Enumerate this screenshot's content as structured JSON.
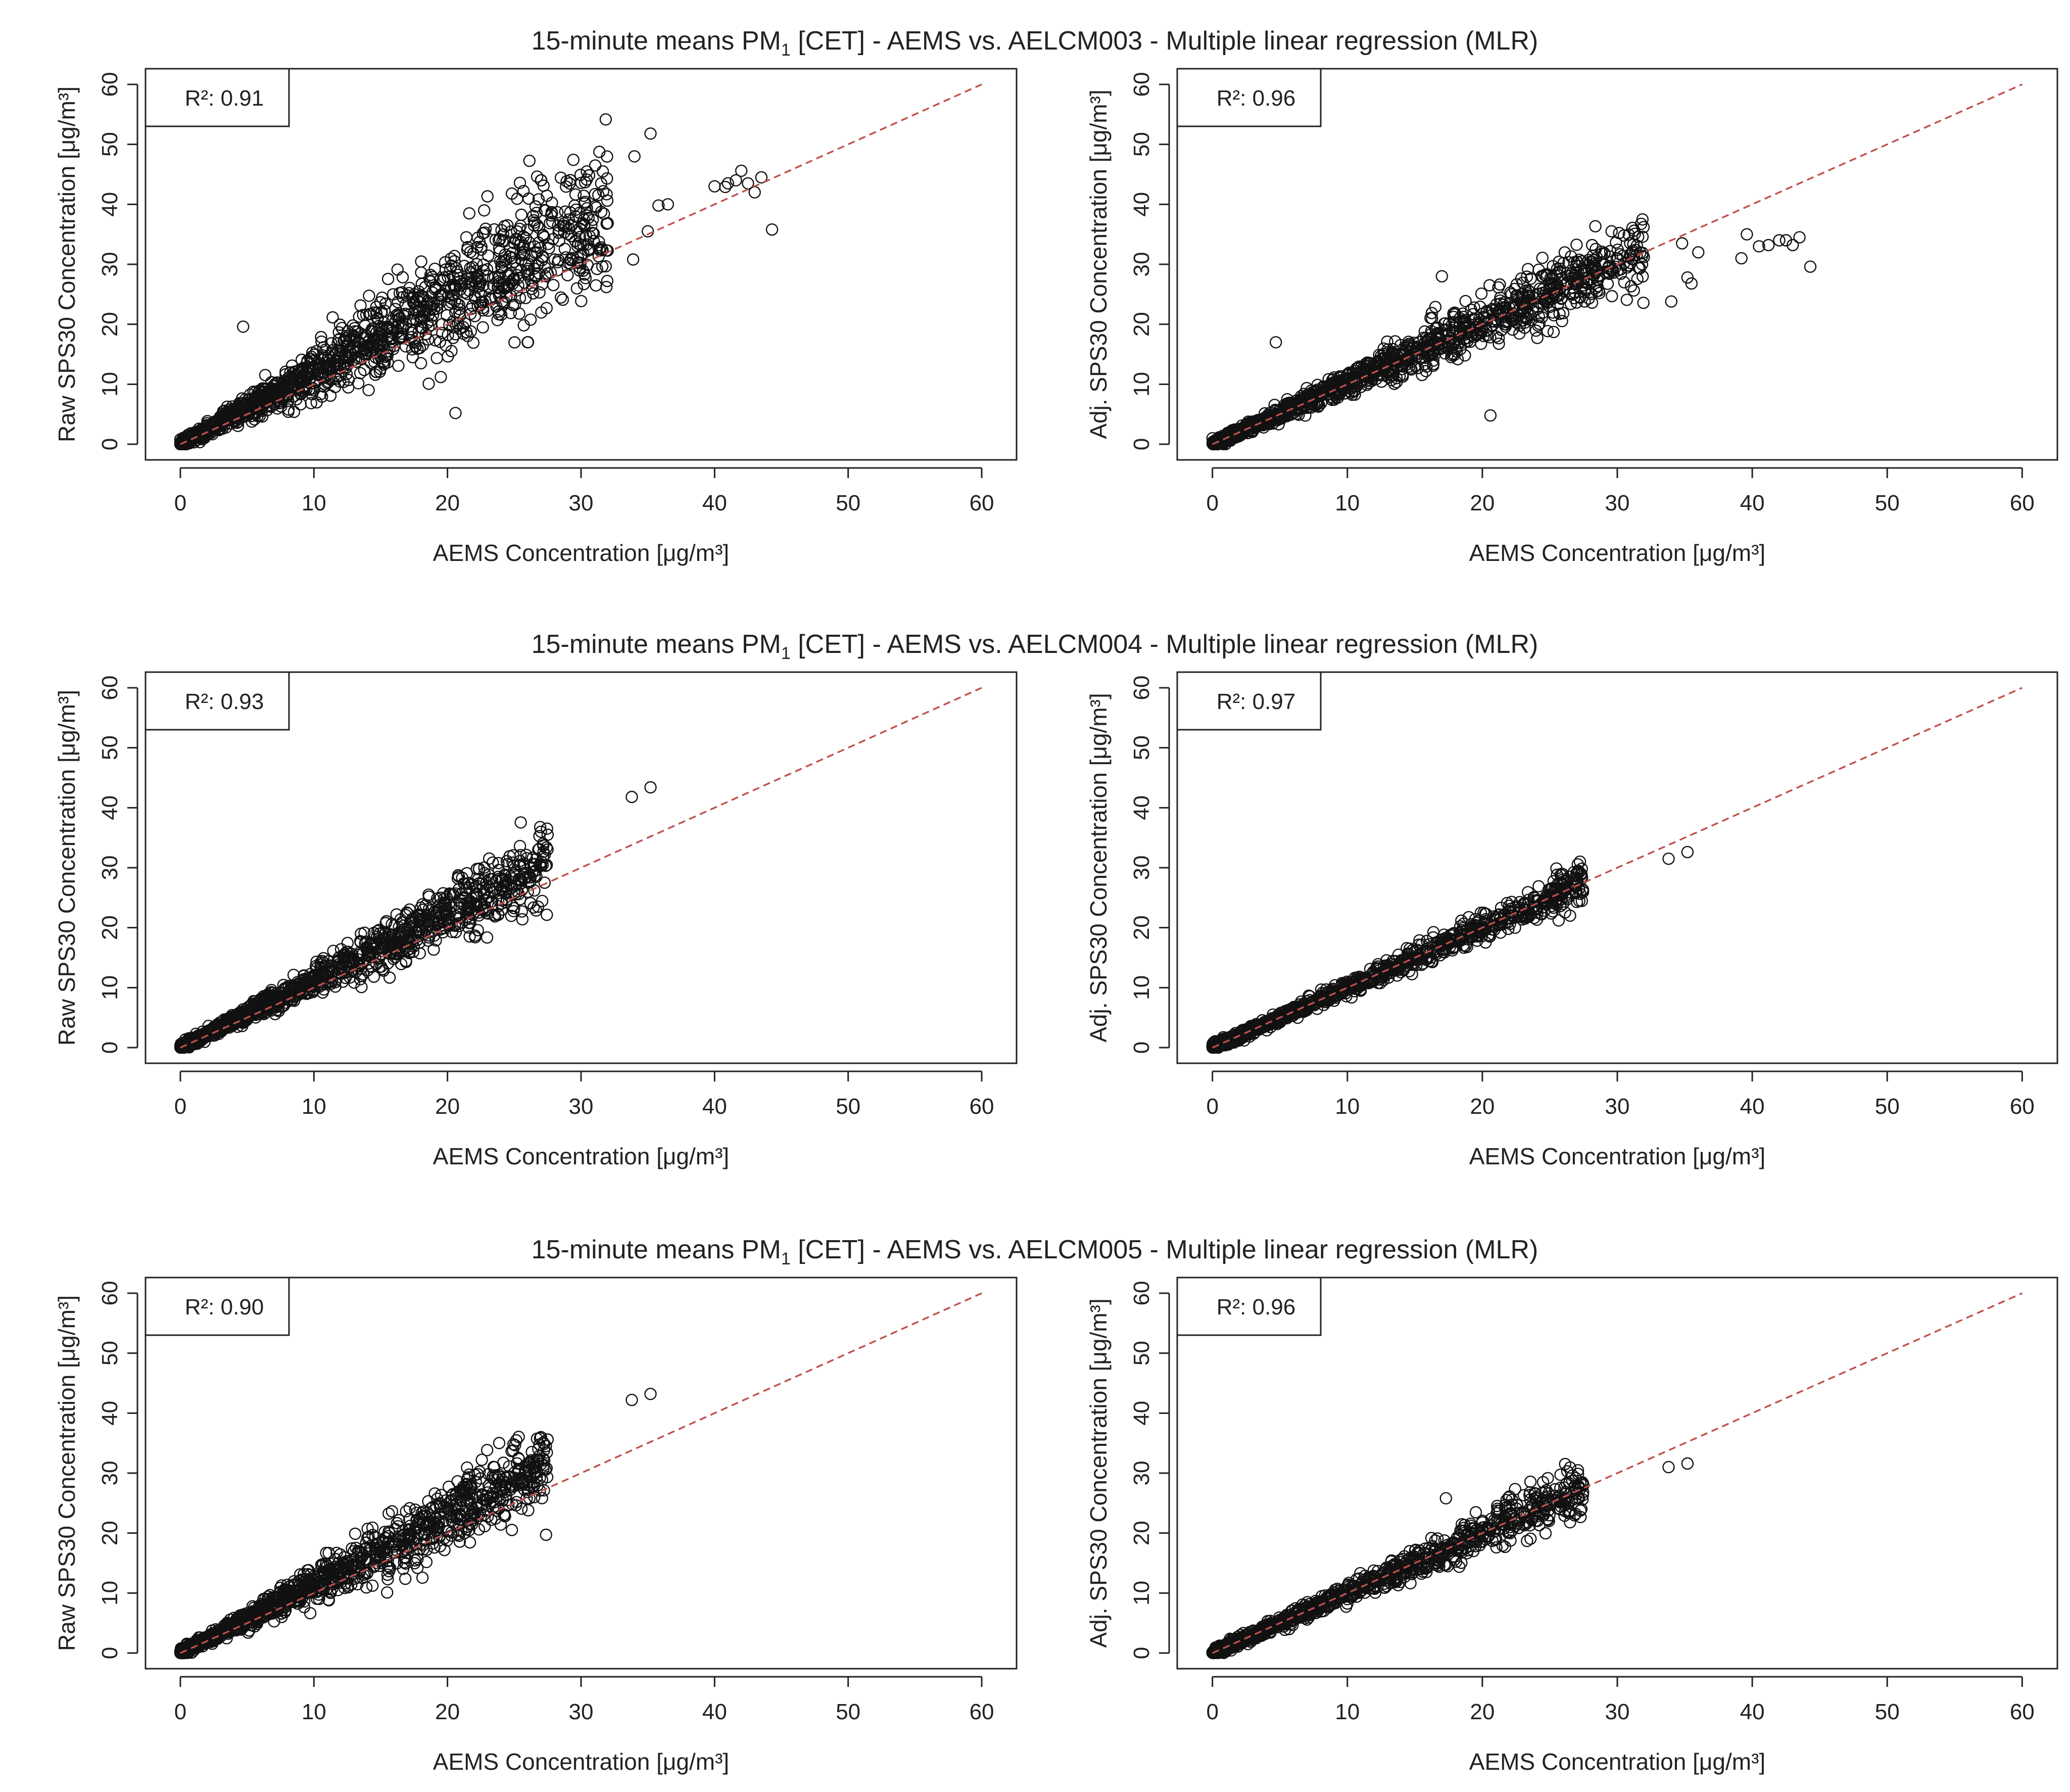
{
  "colors": {
    "reference_line": "#c0504d",
    "points": "#111111",
    "frame": "#222222"
  },
  "chart_data": [
    {
      "type": "scatter",
      "row_title": {
        "prefix": "15-minute means PM",
        "subscript": "1",
        "suffix": " [CET] - AEMS vs. AELCM003 - Multiple linear regression (MLR)"
      },
      "panels": [
        {
          "name": "raw",
          "xlabel": "AEMS Concentration [μg/m³]",
          "ylabel": "Raw SPS30 Concentration [μg/m³]",
          "legend": "R²: 0.91",
          "xlim": [
            0,
            60
          ],
          "ylim": [
            0,
            60
          ],
          "xticks": [
            "0",
            "10",
            "20",
            "30",
            "40",
            "50",
            "60"
          ],
          "yticks": [
            "0",
            "10",
            "20",
            "30",
            "40",
            "50",
            "60"
          ],
          "reference_line": {
            "x": [
              0,
              60
            ],
            "y": [
              0,
              60
            ]
          },
          "cloud": {
            "xmax": 32,
            "slope": 1.25,
            "spread": 0.3,
            "count": 1400,
            "seed": 11
          },
          "outliers": [
            [
              4.7,
              19.6
            ],
            [
              20.6,
              5.2
            ],
            [
              26,
              17
            ],
            [
              19.5,
              11.2
            ],
            [
              34,
              48
            ],
            [
              35.2,
              51.8
            ],
            [
              35.8,
              39.8
            ],
            [
              36.5,
              40
            ],
            [
              33.9,
              30.8
            ],
            [
              35,
              35.5
            ],
            [
              40,
              43
            ],
            [
              41,
              43.5
            ],
            [
              42,
              45.6
            ],
            [
              42.5,
              43.5
            ],
            [
              43,
              42
            ],
            [
              43.5,
              44.5
            ],
            [
              44.3,
              35.8
            ],
            [
              40.8,
              42.9
            ],
            [
              41.6,
              44
            ],
            [
              27,
              44
            ]
          ]
        },
        {
          "name": "adjusted",
          "xlabel": "AEMS Concentration [μg/m³]",
          "ylabel": "Adj. SPS30 Concentration [μg/m³]",
          "legend": "R²: 0.96",
          "xlim": [
            0,
            60
          ],
          "ylim": [
            0,
            60
          ],
          "xticks": [
            "0",
            "10",
            "20",
            "30",
            "40",
            "50",
            "60"
          ],
          "yticks": [
            "0",
            "10",
            "20",
            "30",
            "40",
            "50",
            "60"
          ],
          "reference_line": {
            "x": [
              0,
              60
            ],
            "y": [
              0,
              60
            ]
          },
          "cloud": {
            "xmax": 32,
            "slope": 1.02,
            "spread": 0.18,
            "count": 1300,
            "seed": 23
          },
          "outliers": [
            [
              4.7,
              17
            ],
            [
              20.6,
              4.8
            ],
            [
              17,
              28
            ],
            [
              34,
              23.8
            ],
            [
              34.8,
              33.5
            ],
            [
              35.2,
              27.8
            ],
            [
              35.5,
              26.8
            ],
            [
              36,
              32
            ],
            [
              39.2,
              31
            ],
            [
              39.6,
              35
            ],
            [
              40.5,
              33
            ],
            [
              41.2,
              33.2
            ],
            [
              42,
              34
            ],
            [
              42.5,
              34
            ],
            [
              43,
              33.2
            ],
            [
              43.5,
              34.5
            ],
            [
              44.3,
              29.6
            ]
          ]
        }
      ]
    },
    {
      "type": "scatter",
      "row_title": {
        "prefix": "15-minute means PM",
        "subscript": "1",
        "suffix": " [CET] - AEMS vs. AELCM004 - Multiple linear regression (MLR)"
      },
      "panels": [
        {
          "name": "raw",
          "xlabel": "AEMS Concentration [μg/m³]",
          "ylabel": "Raw SPS30 Concentration [μg/m³]",
          "legend": "R²: 0.93",
          "xlim": [
            0,
            60
          ],
          "ylim": [
            0,
            60
          ],
          "xticks": [
            "0",
            "10",
            "20",
            "30",
            "40",
            "50",
            "60"
          ],
          "yticks": [
            "0",
            "10",
            "20",
            "30",
            "40",
            "50",
            "60"
          ],
          "reference_line": {
            "x": [
              0,
              60
            ],
            "y": [
              0,
              60
            ]
          },
          "cloud": {
            "xmax": 27.5,
            "slope": 1.15,
            "spread": 0.18,
            "count": 1200,
            "seed": 37
          },
          "outliers": [
            [
              33.8,
              41.8
            ],
            [
              35.2,
              43.4
            ],
            [
              26.5,
              26.2
            ],
            [
              27,
              36
            ],
            [
              27.5,
              35.5
            ],
            [
              26.8,
              33
            ]
          ]
        },
        {
          "name": "adjusted",
          "xlabel": "AEMS Concentration [μg/m³]",
          "ylabel": "Adj. SPS30 Concentration [μg/m³]",
          "legend": "R²: 0.97",
          "xlim": [
            0,
            60
          ],
          "ylim": [
            0,
            60
          ],
          "xticks": [
            "0",
            "10",
            "20",
            "30",
            "40",
            "50",
            "60"
          ],
          "yticks": [
            "0",
            "10",
            "20",
            "30",
            "40",
            "50",
            "60"
          ],
          "reference_line": {
            "x": [
              0,
              60
            ],
            "y": [
              0,
              60
            ]
          },
          "cloud": {
            "xmax": 27.5,
            "slope": 1.0,
            "spread": 0.1,
            "count": 1000,
            "seed": 41
          },
          "outliers": [
            [
              33.8,
              31.5
            ],
            [
              35.2,
              32.6
            ],
            [
              27,
              27.5
            ],
            [
              26.5,
              22
            ]
          ]
        }
      ]
    },
    {
      "type": "scatter",
      "row_title": {
        "prefix": "15-minute means PM",
        "subscript": "1",
        "suffix": " [CET] - AEMS vs. AELCM005 - Multiple linear regression (MLR)"
      },
      "panels": [
        {
          "name": "raw",
          "xlabel": "AEMS Concentration [μg/m³]",
          "ylabel": "Raw SPS30 Concentration [μg/m³]",
          "legend": "R²: 0.90",
          "xlim": [
            0,
            60
          ],
          "ylim": [
            0,
            60
          ],
          "xticks": [
            "0",
            "10",
            "20",
            "30",
            "40",
            "50",
            "60"
          ],
          "yticks": [
            "0",
            "10",
            "20",
            "30",
            "40",
            "50",
            "60"
          ],
          "reference_line": {
            "x": [
              0,
              60
            ],
            "y": [
              0,
              60
            ]
          },
          "cloud": {
            "xmax": 27.5,
            "slope": 1.18,
            "spread": 0.22,
            "count": 1200,
            "seed": 53
          },
          "outliers": [
            [
              33.8,
              42.2
            ],
            [
              35.2,
              43.2
            ],
            [
              26.5,
              26
            ],
            [
              27,
              36
            ],
            [
              27.5,
              35.6
            ],
            [
              26.8,
              34
            ]
          ]
        },
        {
          "name": "adjusted",
          "xlabel": "AEMS Concentration [μg/m³]",
          "ylabel": "Adj. SPS30 Concentration [μg/m³]",
          "legend": "R²: 0.96",
          "xlim": [
            0,
            60
          ],
          "ylim": [
            0,
            60
          ],
          "xticks": [
            "0",
            "10",
            "20",
            "30",
            "40",
            "50",
            "60"
          ],
          "yticks": [
            "0",
            "10",
            "20",
            "30",
            "40",
            "50",
            "60"
          ],
          "reference_line": {
            "x": [
              0,
              60
            ],
            "y": [
              0,
              60
            ]
          },
          "cloud": {
            "xmax": 27.5,
            "slope": 1.0,
            "spread": 0.14,
            "count": 1000,
            "seed": 67
          },
          "outliers": [
            [
              17.3,
              25.8
            ],
            [
              33.8,
              31
            ],
            [
              35.2,
              31.6
            ],
            [
              27,
              26.5
            ],
            [
              24.5,
              28.5
            ],
            [
              26.5,
              21.8
            ]
          ]
        }
      ]
    }
  ]
}
